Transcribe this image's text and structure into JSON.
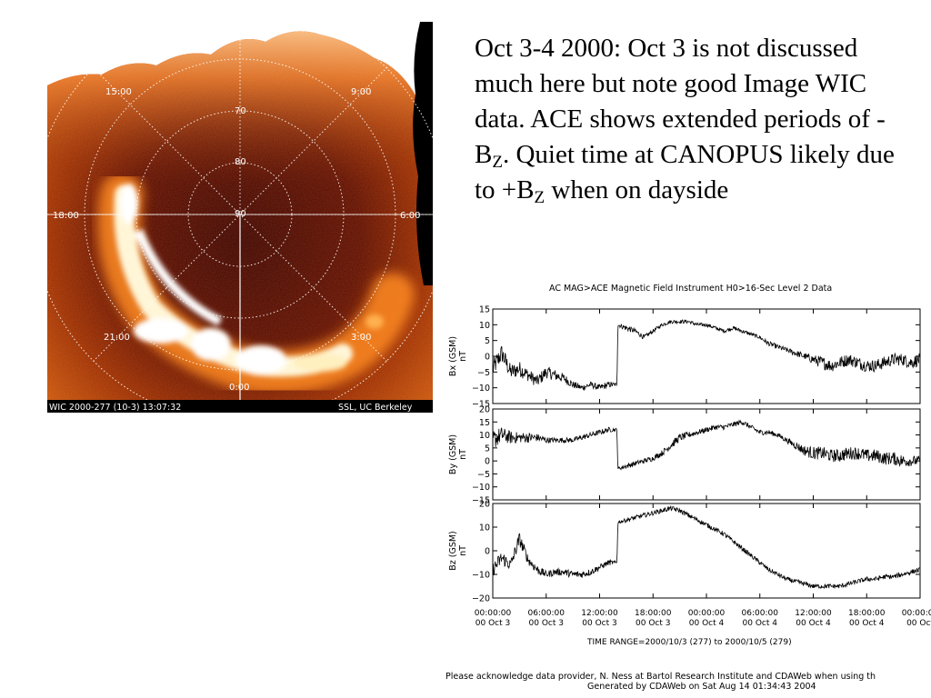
{
  "slide": {
    "text_part1": "Oct 3-4 2000: Oct 3 is not discussed much here but note good Image WIC data. ACE shows extended periods of -B",
    "text_sub1": "Z",
    "text_part2": ". Quiet time at CANOPUS likely due to +B",
    "text_sub2": "Z",
    "text_part3": " when on dayside"
  },
  "aurora": {
    "mlt_labels": [
      "15:00",
      "9:00",
      "18:00",
      "6:00",
      "21:00",
      "3:00",
      "0:00"
    ],
    "lat_labels": [
      "70",
      "80",
      "90"
    ],
    "footer_left": "WIC  2000-277 (10-3)  13:07:32",
    "footer_right": "SSL, UC Berkeley"
  },
  "chart_data": {
    "type": "line",
    "title": "AC  MAG>ACE Magnetic Field Instrument  H0>16-Sec Level 2 Data",
    "x_tick_times": [
      "00:00:00",
      "06:00:00",
      "12:00:00",
      "18:00:00",
      "00:00:00",
      "06:00:00",
      "12:00:00",
      "18:00:00",
      "00:00:00"
    ],
    "x_tick_dates": [
      "00 Oct  3",
      "00 Oct  3",
      "00 Oct  3",
      "00 Oct  3",
      "00 Oct  4",
      "00 Oct  4",
      "00 Oct  4",
      "00 Oct  4",
      "00 Oct"
    ],
    "x_hours_range": [
      0,
      48
    ],
    "time_range_label": "TIME RANGE=2000/10/3 (277) to 2000/10/5 (279)",
    "panels": [
      {
        "ylabel": "Bx (GSM)",
        "yunit": "nT",
        "ylim": [
          -15,
          15
        ],
        "yticks": [
          "15",
          "10",
          "5",
          "0",
          "−5",
          "−10",
          "−15"
        ],
        "ytick_values": [
          15,
          10,
          5,
          0,
          -5,
          -10,
          -15
        ],
        "series": {
          "x": [
            0,
            1,
            2,
            3,
            4,
            5,
            6,
            7,
            8,
            9,
            10,
            11,
            12,
            13,
            13.95,
            14.05,
            15,
            16,
            17,
            18,
            19,
            20,
            21,
            22,
            23,
            24,
            25,
            26,
            27,
            28,
            29,
            30,
            31,
            32,
            33,
            34,
            35,
            36,
            37,
            38,
            39,
            40,
            41,
            42,
            43,
            44,
            45,
            46,
            47,
            48
          ],
          "y": [
            -4,
            1,
            -5,
            -4,
            -6,
            -8,
            -5,
            -6,
            -7,
            -9,
            -10,
            -9,
            -10,
            -9,
            -9,
            10,
            9,
            8,
            6,
            8,
            10,
            11,
            11,
            11,
            10,
            10,
            9,
            8,
            9,
            8,
            7,
            6,
            4,
            3,
            2,
            1,
            0,
            -1,
            -2,
            -3,
            -2,
            -1,
            -2,
            -3,
            -3,
            -2,
            -1,
            -1,
            -2,
            -1
          ],
          "noise": [
            3,
            3,
            2.5,
            2.5,
            2,
            2,
            2,
            1.8,
            1.5,
            1.2,
            1,
            1,
            1,
            1,
            0.6,
            0.6,
            1,
            0.8,
            0.8,
            0.6,
            0.6,
            0.6,
            0.6,
            0.6,
            0.6,
            0.6,
            0.6,
            0.6,
            0.6,
            0.6,
            0.6,
            0.6,
            0.8,
            0.8,
            0.8,
            1,
            1,
            1.5,
            2,
            2,
            2,
            2,
            2,
            2,
            2,
            2,
            2,
            2,
            2,
            2
          ]
        }
      },
      {
        "ylabel": "By (GSM)",
        "yunit": "nT",
        "ylim": [
          -15,
          20
        ],
        "yticks": [
          "20",
          "15",
          "10",
          "5",
          "0",
          "−5",
          "−10",
          "−15"
        ],
        "ytick_values": [
          20,
          15,
          10,
          5,
          0,
          -5,
          -10,
          -15
        ],
        "series": {
          "x": [
            0,
            1,
            2,
            3,
            4,
            5,
            6,
            7,
            8,
            9,
            10,
            11,
            12,
            13,
            13.95,
            14.05,
            15,
            16,
            17,
            18,
            19,
            20,
            21,
            22,
            23,
            24,
            25,
            26,
            27,
            28,
            29,
            30,
            31,
            32,
            33,
            34,
            35,
            36,
            37,
            38,
            39,
            40,
            41,
            42,
            43,
            44,
            45,
            46,
            47,
            48
          ],
          "y": [
            8,
            10,
            9,
            9,
            9,
            9,
            8,
            8,
            8,
            8,
            9,
            10,
            11,
            12,
            12,
            -3,
            -2,
            -1,
            0,
            1,
            3,
            6,
            9,
            10,
            11,
            12,
            13,
            13,
            14,
            15,
            13,
            11,
            11,
            10,
            8,
            6,
            4,
            3,
            3,
            2,
            2,
            3,
            3,
            2,
            2,
            1,
            1,
            0,
            0,
            0
          ],
          "noise": [
            4,
            3,
            2.5,
            2,
            2,
            1.5,
            1.2,
            1,
            1,
            1,
            1,
            1,
            1,
            1,
            0.6,
            0.6,
            1,
            1,
            1,
            1,
            1.2,
            1.5,
            1.5,
            1.2,
            1,
            1,
            1,
            1,
            1,
            1,
            1,
            1,
            1,
            1,
            1,
            1.5,
            2,
            2.5,
            2.5,
            2.5,
            2.5,
            2.5,
            2.5,
            2.5,
            2.5,
            2.5,
            2.5,
            2.5,
            2,
            2
          ]
        }
      },
      {
        "ylabel": "Bz (GSM)",
        "yunit": "nT",
        "ylim": [
          -20,
          20
        ],
        "yticks": [
          "20",
          "10",
          "0",
          "−10",
          "−20"
        ],
        "ytick_values": [
          20,
          10,
          0,
          -10,
          -20
        ],
        "series": {
          "x": [
            0,
            1,
            2,
            3,
            4,
            5,
            6,
            7,
            8,
            9,
            10,
            11,
            12,
            13,
            13.95,
            14.05,
            15,
            16,
            17,
            18,
            19,
            20,
            21,
            22,
            23,
            24,
            25,
            26,
            27,
            28,
            29,
            30,
            31,
            32,
            33,
            34,
            35,
            36,
            37,
            38,
            39,
            40,
            41,
            42,
            43,
            44,
            45,
            46,
            47,
            48
          ],
          "y": [
            -8,
            -3,
            -6,
            5,
            -4,
            -8,
            -10,
            -9,
            -9,
            -10,
            -10,
            -9,
            -7,
            -5,
            -5,
            12,
            13,
            14,
            15,
            16,
            17,
            18,
            17,
            15,
            13,
            11,
            9,
            7,
            4,
            1,
            -2,
            -5,
            -8,
            -10,
            -12,
            -13,
            -14,
            -15,
            -15,
            -15,
            -15,
            -14,
            -13,
            -12,
            -12,
            -11,
            -11,
            -10,
            -9,
            -8
          ],
          "noise": [
            3,
            3,
            2.5,
            3,
            2,
            2,
            1.5,
            1.5,
            1.5,
            1.5,
            1.5,
            1.5,
            1.2,
            1.2,
            0.6,
            0.6,
            1,
            1,
            1,
            1,
            1,
            1,
            1,
            1,
            1,
            1,
            1,
            1,
            1,
            1,
            1,
            1,
            1,
            1,
            1,
            1,
            1,
            1,
            1,
            1,
            1,
            1,
            1,
            1,
            1,
            1,
            1,
            1,
            1,
            1
          ]
        }
      }
    ],
    "footer_line1": "Please acknowledge data provider, N. Ness at Bartol Research Institute and CDAWeb when using th",
    "footer_line2": "Generated by CDAWeb on Sat Aug 14 01:34:43 2004"
  }
}
